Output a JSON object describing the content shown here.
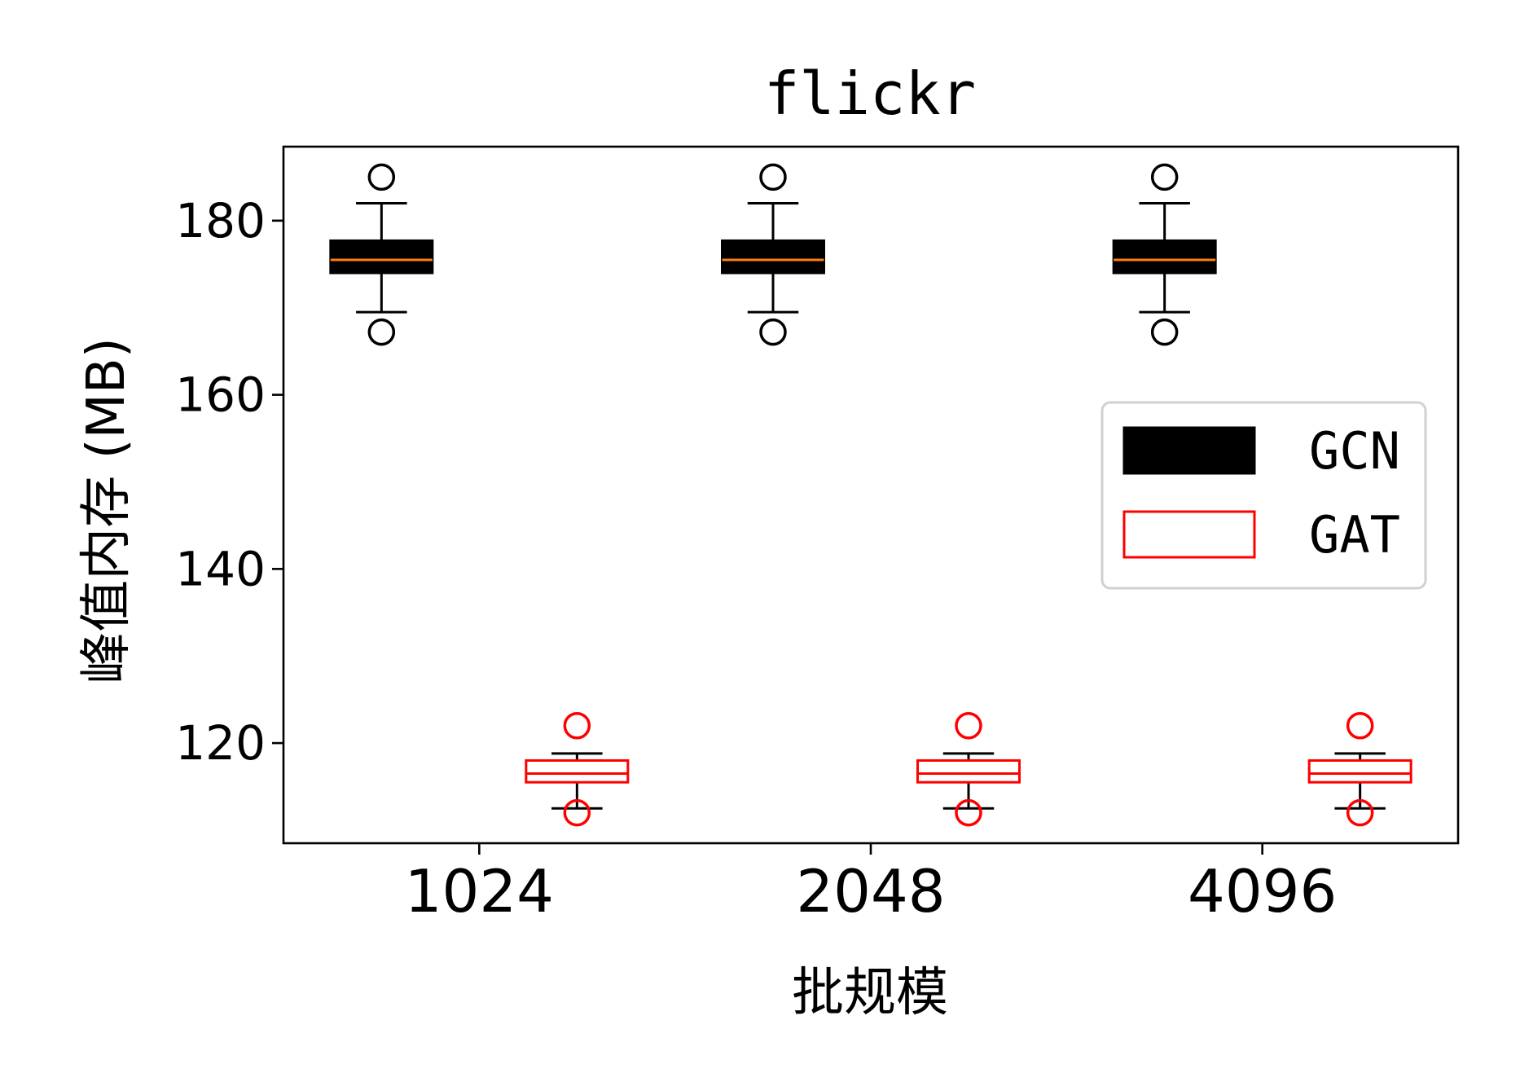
{
  "chart_data": {
    "type": "box",
    "title": "flickr",
    "xlabel": "批规模",
    "ylabel": "峰值内存 (MB)",
    "categories": [
      "1024",
      "2048",
      "4096"
    ],
    "ylim": [
      108.5,
      188.5
    ],
    "yticks": [
      120,
      140,
      160,
      180
    ],
    "grid": false,
    "legend_position": "right",
    "series": [
      {
        "name": "GCN",
        "color": "#000000",
        "fill": "#000000",
        "median_color": "#ff7f0e",
        "boxes": [
          {
            "category": "1024",
            "whisker_low": 169.5,
            "q1": 174.0,
            "median": 175.5,
            "q3": 177.7,
            "whisker_high": 182.0,
            "outliers": [
              167.2,
              185.0
            ]
          },
          {
            "category": "2048",
            "whisker_low": 169.5,
            "q1": 174.0,
            "median": 175.5,
            "q3": 177.7,
            "whisker_high": 182.0,
            "outliers": [
              167.2,
              185.0
            ]
          },
          {
            "category": "4096",
            "whisker_low": 169.5,
            "q1": 174.0,
            "median": 175.5,
            "q3": 177.7,
            "whisker_high": 182.0,
            "outliers": [
              167.2,
              185.0
            ]
          }
        ]
      },
      {
        "name": "GAT",
        "color": "#ff0000",
        "fill": "none",
        "median_color": "#ff0000",
        "boxes": [
          {
            "category": "1024",
            "whisker_low": 112.5,
            "q1": 115.5,
            "median": 116.5,
            "q3": 118.0,
            "whisker_high": 118.8,
            "outliers": [
              112.0,
              122.0
            ]
          },
          {
            "category": "2048",
            "whisker_low": 112.5,
            "q1": 115.5,
            "median": 116.5,
            "q3": 118.0,
            "whisker_high": 118.8,
            "outliers": [
              112.0,
              122.0
            ]
          },
          {
            "category": "4096",
            "whisker_low": 112.5,
            "q1": 115.5,
            "median": 116.5,
            "q3": 118.0,
            "whisker_high": 118.8,
            "outliers": [
              112.0,
              122.0
            ]
          }
        ]
      }
    ]
  }
}
